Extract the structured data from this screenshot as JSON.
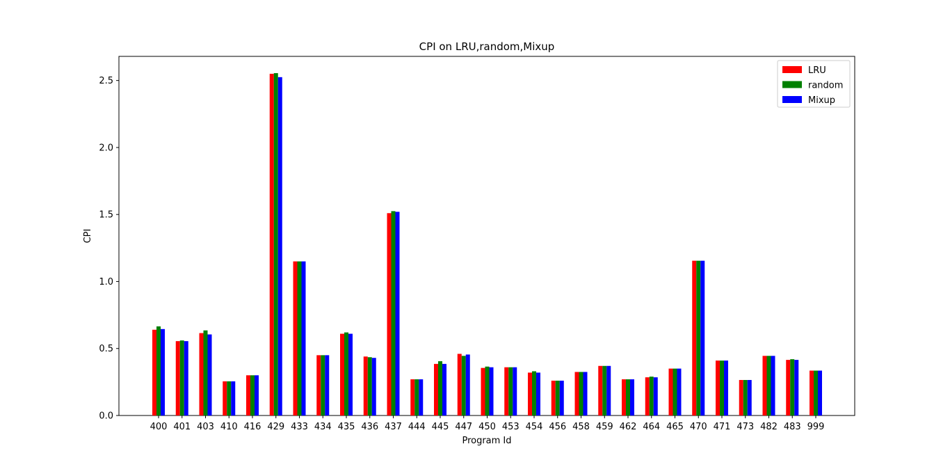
{
  "chart_data": {
    "type": "bar",
    "title": "CPI on LRU,random,Mixup",
    "xlabel": "Program Id",
    "ylabel": "CPI",
    "ylim": [
      0,
      2.68
    ],
    "yticks": [
      "0.0",
      "0.5",
      "1.0",
      "1.5",
      "2.0",
      "2.5"
    ],
    "grid": false,
    "legend_position": "top-right",
    "categories": [
      "400",
      "401",
      "403",
      "410",
      "416",
      "429",
      "433",
      "434",
      "435",
      "436",
      "437",
      "444",
      "445",
      "447",
      "450",
      "453",
      "454",
      "456",
      "458",
      "459",
      "462",
      "464",
      "465",
      "470",
      "471",
      "473",
      "482",
      "483",
      "999"
    ],
    "series": [
      {
        "name": "LRU",
        "color": "#ff0000",
        "values": [
          0.64,
          0.555,
          0.615,
          0.255,
          0.3,
          2.55,
          1.15,
          0.45,
          0.61,
          0.44,
          1.51,
          0.27,
          0.385,
          0.46,
          0.355,
          0.36,
          0.32,
          0.26,
          0.325,
          0.37,
          0.27,
          0.285,
          0.35,
          1.155,
          0.41,
          0.265,
          0.445,
          0.415,
          0.335
        ]
      },
      {
        "name": "random",
        "color": "#008000",
        "values": [
          0.665,
          0.56,
          0.635,
          0.255,
          0.3,
          2.555,
          1.15,
          0.45,
          0.62,
          0.435,
          1.525,
          0.27,
          0.405,
          0.445,
          0.365,
          0.36,
          0.33,
          0.26,
          0.325,
          0.37,
          0.27,
          0.29,
          0.35,
          1.155,
          0.41,
          0.265,
          0.445,
          0.42,
          0.335
        ]
      },
      {
        "name": "Mixup",
        "color": "#0000ff",
        "values": [
          0.645,
          0.555,
          0.605,
          0.255,
          0.3,
          2.525,
          1.15,
          0.45,
          0.61,
          0.43,
          1.52,
          0.27,
          0.385,
          0.455,
          0.36,
          0.36,
          0.32,
          0.26,
          0.325,
          0.37,
          0.27,
          0.285,
          0.35,
          1.155,
          0.41,
          0.265,
          0.445,
          0.415,
          0.335
        ]
      }
    ]
  }
}
